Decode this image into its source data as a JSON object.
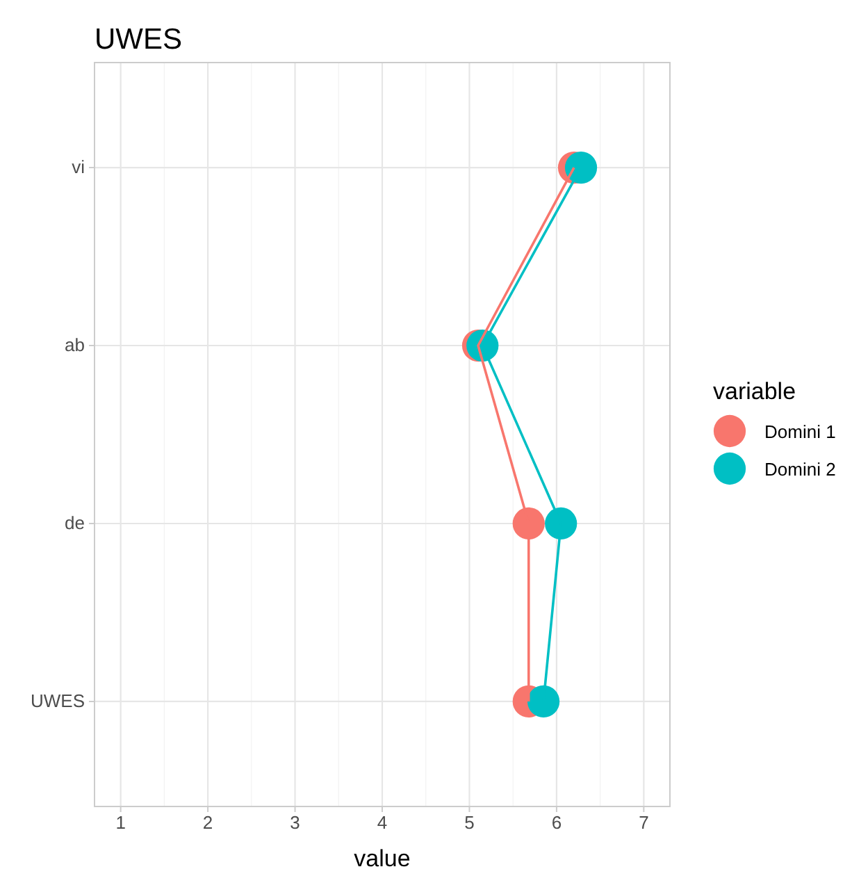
{
  "chart_data": {
    "type": "line",
    "title": "UWES",
    "xlabel": "value",
    "legend_title": "variable",
    "orientation": "horizontal",
    "categories": [
      "vi",
      "ab",
      "de",
      "UWES"
    ],
    "series": [
      {
        "name": "Domini 1",
        "color": "#f8766d",
        "values": [
          6.2,
          5.1,
          5.68,
          5.68
        ]
      },
      {
        "name": "Domini 2",
        "color": "#00bfc4",
        "values": [
          6.28,
          5.15,
          6.05,
          5.85
        ]
      }
    ],
    "xlim": [
      0.7,
      7.3
    ],
    "xticks": [
      1,
      2,
      3,
      4,
      5,
      6,
      7
    ],
    "grid": true,
    "legend": "right",
    "marker": "circle",
    "line_style": "solid"
  }
}
